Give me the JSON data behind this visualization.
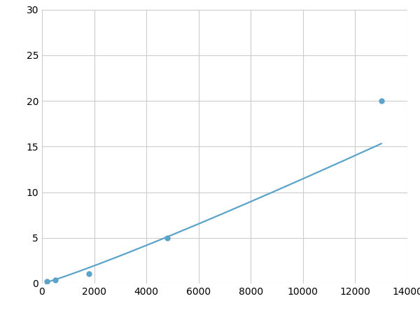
{
  "x": [
    200,
    500,
    1800,
    4800,
    13000
  ],
  "y": [
    0.2,
    0.4,
    1.1,
    5.0,
    20.0
  ],
  "line_color": "#5ba3c9",
  "marker_color": "#5ba3c9",
  "marker_size": 6,
  "line_width": 1.6,
  "xlim": [
    0,
    14000
  ],
  "ylim": [
    0,
    30
  ],
  "xticks": [
    0,
    2000,
    4000,
    6000,
    8000,
    10000,
    12000,
    14000
  ],
  "yticks": [
    0,
    5,
    10,
    15,
    20,
    25,
    30
  ],
  "grid_color": "#cccccc",
  "background_color": "#ffffff",
  "tick_fontsize": 10
}
